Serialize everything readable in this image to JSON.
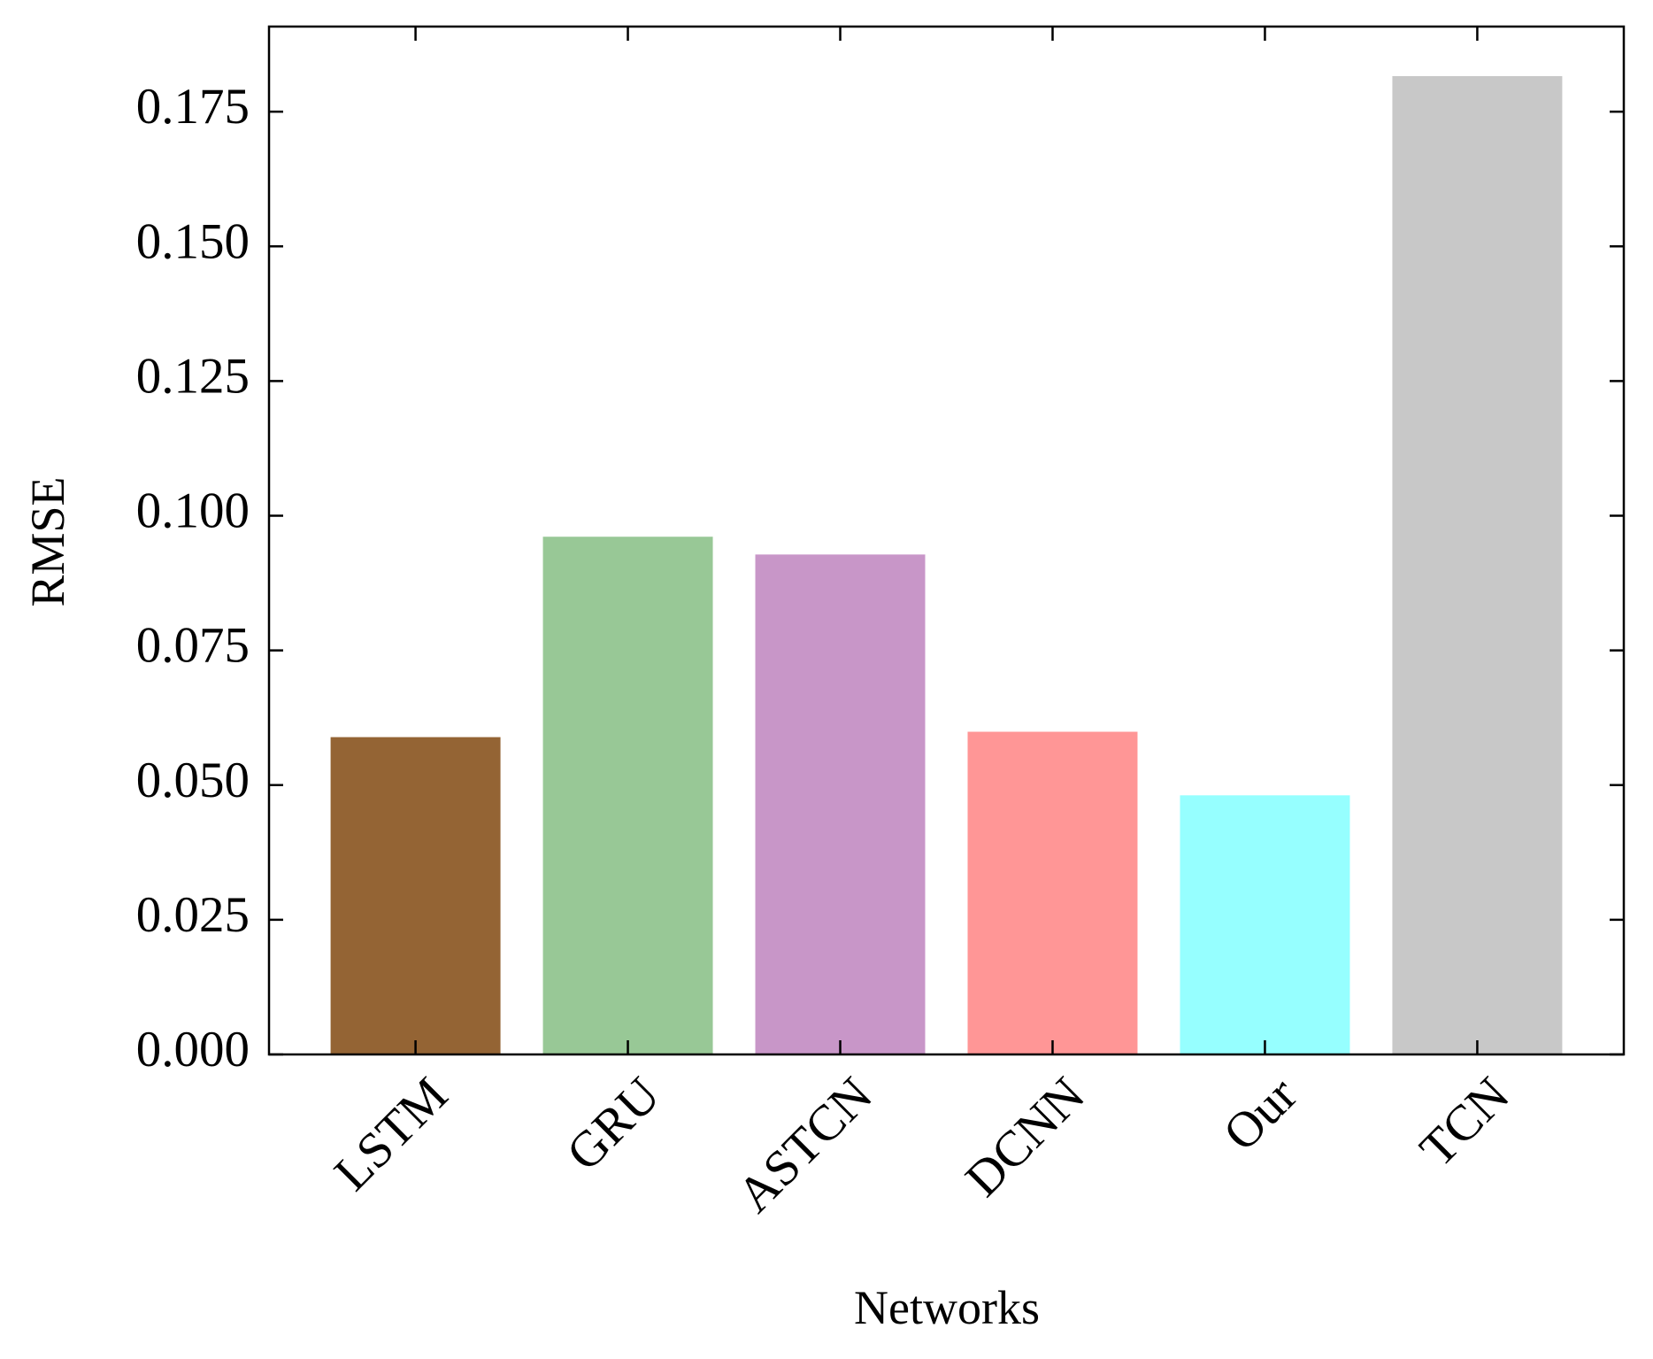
{
  "chart_data": {
    "type": "bar",
    "x_label": "Networks",
    "y_label": "RMSE",
    "categories": [
      "LSTM",
      "GRU",
      "ASTCN",
      "DCNN",
      "Our",
      "TCN"
    ],
    "values": [
      0.0589,
      0.0961,
      0.0928,
      0.0599,
      0.0481,
      0.1816
    ],
    "colors": [
      "#946434",
      "#98c896",
      "#c896c8",
      "#ff9696",
      "#96ffff",
      "#c8c8c8"
    ],
    "ylim": [
      0,
      0.1908
    ],
    "yticks": [
      {
        "value": 0,
        "label": "0.000"
      },
      {
        "value": 0.025,
        "label": "0.025"
      },
      {
        "value": 0.05,
        "label": "0.050"
      },
      {
        "value": 0.075,
        "label": "0.075"
      },
      {
        "value": 0.1,
        "label": "0.100"
      },
      {
        "value": 0.125,
        "label": "0.125"
      },
      {
        "value": 0.15,
        "label": "0.150"
      },
      {
        "value": 0.175,
        "label": "0.175"
      }
    ],
    "grid": false
  }
}
